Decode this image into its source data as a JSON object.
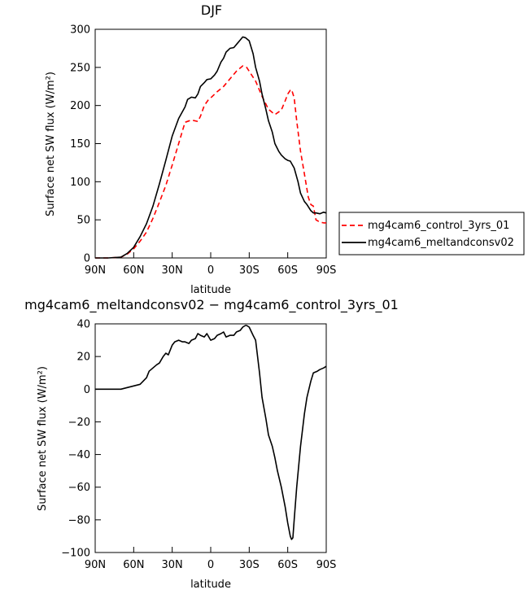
{
  "chart_data": [
    {
      "type": "line",
      "title": "DJF",
      "xlabel": "latitude",
      "ylabel": "Surface net SW flux (W/m²)",
      "x_ticks": [
        "90N",
        "60N",
        "30N",
        "0",
        "30S",
        "60S",
        "90S"
      ],
      "x_tick_values": [
        90,
        60,
        30,
        0,
        -30,
        -60,
        -90
      ],
      "xlim": [
        90,
        -90
      ],
      "ylim": [
        0,
        300
      ],
      "y_ticks": [
        0,
        50,
        100,
        150,
        200,
        250,
        300
      ],
      "legend_placement": "right",
      "series": [
        {
          "name": "mg4cam6_control_3yrs_01",
          "color": "#ff0000",
          "style": "dashed",
          "x": [
            90,
            80,
            70,
            65,
            60,
            55,
            50,
            45,
            40,
            35,
            30,
            25,
            20,
            15,
            10,
            8,
            5,
            2,
            0,
            -5,
            -10,
            -15,
            -20,
            -25,
            -28,
            -30,
            -35,
            -40,
            -45,
            -50,
            -55,
            -58,
            -60,
            -62,
            -63,
            -65,
            -67,
            -70,
            -73,
            -76,
            -78,
            -80,
            -82,
            -85,
            -88,
            -90
          ],
          "y": [
            0,
            0,
            1,
            5,
            12,
            22,
            34,
            52,
            73,
            95,
            122,
            150,
            178,
            181,
            179,
            186,
            200,
            207,
            210,
            218,
            225,
            235,
            245,
            252,
            250,
            245,
            232,
            212,
            195,
            188,
            194,
            206,
            215,
            220,
            221,
            210,
            180,
            140,
            110,
            80,
            70,
            68,
            50,
            47,
            46,
            46
          ]
        },
        {
          "name": "mg4cam6_meltandconsv02",
          "color": "#000000",
          "style": "solid",
          "x": [
            90,
            80,
            70,
            65,
            60,
            55,
            50,
            45,
            40,
            35,
            30,
            25,
            20,
            18,
            15,
            12,
            10,
            8,
            5,
            3,
            0,
            -3,
            -5,
            -8,
            -10,
            -12,
            -15,
            -18,
            -20,
            -23,
            -25,
            -27,
            -30,
            -33,
            -35,
            -38,
            -40,
            -43,
            -45,
            -48,
            -50,
            -53,
            -55,
            -58,
            -60,
            -62,
            -65,
            -68,
            -70,
            -73,
            -75,
            -78,
            -80,
            -82,
            -85,
            -88,
            -90
          ],
          "y": [
            0,
            0,
            1,
            6,
            14,
            28,
            45,
            68,
            97,
            128,
            160,
            183,
            198,
            208,
            211,
            210,
            215,
            225,
            230,
            234,
            235,
            240,
            245,
            257,
            262,
            270,
            275,
            276,
            280,
            286,
            290,
            289,
            285,
            268,
            250,
            232,
            215,
            195,
            180,
            165,
            150,
            140,
            135,
            130,
            128,
            127,
            118,
            100,
            85,
            74,
            70,
            62,
            59,
            59,
            58,
            60,
            59
          ]
        }
      ]
    },
    {
      "type": "line",
      "title": "mg4cam6_meltandconsv02 − mg4cam6_control_3yrs_01",
      "xlabel": "latitude",
      "ylabel": "Surface net SW flux (W/m²)",
      "x_ticks": [
        "90N",
        "60N",
        "30N",
        "0",
        "30S",
        "60S",
        "90S"
      ],
      "x_tick_values": [
        90,
        60,
        30,
        0,
        -30,
        -60,
        -90
      ],
      "xlim": [
        90,
        -90
      ],
      "ylim": [
        -100,
        40
      ],
      "y_ticks": [
        -100,
        -80,
        -60,
        -40,
        -20,
        0,
        20,
        40
      ],
      "series": [
        {
          "color": "#000000",
          "style": "solid",
          "x": [
            90,
            80,
            70,
            65,
            60,
            55,
            50,
            48,
            45,
            42,
            40,
            37,
            35,
            33,
            30,
            28,
            25,
            22,
            20,
            17,
            15,
            12,
            10,
            8,
            5,
            3,
            0,
            -3,
            -5,
            -8,
            -10,
            -12,
            -15,
            -18,
            -20,
            -23,
            -25,
            -27,
            -28,
            -30,
            -33,
            -35,
            -38,
            -40,
            -43,
            -45,
            -48,
            -50,
            -52,
            -55,
            -58,
            -60,
            -62,
            -63,
            -64,
            -65,
            -67,
            -70,
            -73,
            -75,
            -78,
            -80,
            -83,
            -85,
            -88,
            -90
          ],
          "y": [
            0,
            0,
            0,
            1,
            2,
            3,
            7,
            11,
            13,
            15,
            16,
            20,
            22,
            21,
            27,
            29,
            30,
            29,
            29,
            28,
            30,
            31,
            34,
            33,
            32,
            34,
            30,
            31,
            33,
            34,
            35,
            32,
            33,
            33,
            35,
            36,
            38,
            39,
            39,
            38,
            33,
            30,
            10,
            -5,
            -18,
            -28,
            -35,
            -42,
            -50,
            -60,
            -72,
            -82,
            -90,
            -92,
            -91,
            -80,
            -60,
            -35,
            -15,
            -5,
            5,
            10,
            11,
            12,
            13,
            14
          ]
        }
      ]
    }
  ]
}
